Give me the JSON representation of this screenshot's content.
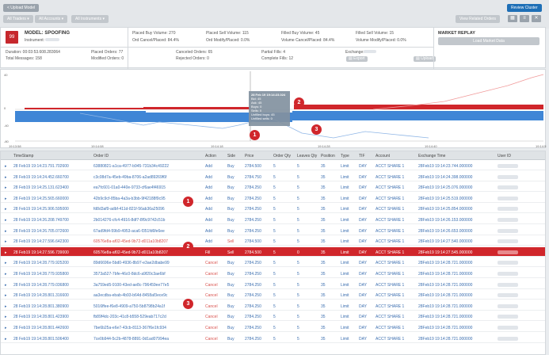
{
  "topbar": {
    "back_label": "< Upload Model",
    "filter_traders": "All Traders ▾",
    "filter_accounts": "All Accounts ▾",
    "filter_instruments": "All Instruments ▾",
    "review_cluster": "Review Cluster",
    "view_button": "View Related Orders"
  },
  "model": {
    "badge": "99",
    "title": "MODEL: SPOOFING",
    "instrument_label": "Instrument:",
    "placed_buy_volume": "Placed Buy Volume: 270",
    "placed_sell_volume": "Placed Sell Volume: 115",
    "filled_buy_volume": "Filled Buy Volume: 45",
    "filled_sell_volume": "Filled Sell Volume: 15",
    "ord_cancel_placed": "Ord Cancel/Placed: 84.4%",
    "ord_modify_placed": "Ord Modify/Placed: 0.0%",
    "vol_cancel_placed": "Volume Cancel/Placed: 84.4%",
    "vol_modify_placed": "Volume Modify/Placed: 0.0%",
    "duration": "Duration: 00:03:53.608.283064",
    "total_messages": "Total Messages: 158",
    "placed_orders": "Placed Orders: 77",
    "modified_orders": "Modified Orders: 0",
    "canceled_orders": "Canceled Orders: 65",
    "rejected_orders": "Rejected Orders: 0",
    "partial_fills": "Partial Fills: 4",
    "complete_fills": "Complete Fills: 12",
    "exchange_label": "Exchange:",
    "market_replay": "MARKET REPLAY",
    "replay_button": "Load Market Data"
  },
  "chart": {
    "y_ticks": [
      "40",
      "0",
      "-40",
      "-80"
    ],
    "x_ticks": [
      "19:13:58",
      "19:14:08",
      "19:14:18",
      "19:14:28",
      "19:14:40",
      "19:14:51"
    ],
    "tooltip": {
      "time": "28 Feb 19 19:14:23.024",
      "bid": "Bid: 45",
      "ask": "Ask: 45",
      "buys": "Buys: 0",
      "sells": "Sells: 0",
      "unfilled_buys": "Unfilled buys: 45",
      "unfilled_sells": "Unfilled sells: 0"
    }
  },
  "table": {
    "columns": [
      "TimeStamp",
      "Order ID",
      "Action",
      "Side",
      "Price",
      "Order Qty",
      "Leaves Qty",
      "Position",
      "Type",
      "TIF",
      "Account",
      "Exchange Time",
      "User ID"
    ],
    "rows": [
      [
        "28 Feb19 19:14:23.791.702600",
        "63880821-a1ca-4977-b945-731b34c49222",
        "Add",
        "Buy",
        "2784.500",
        "5",
        "5",
        "35",
        "Limit",
        "DAY",
        "ACCT SHARE 1",
        "28Feb19 19:14:23.744.000000"
      ],
      [
        "28 Feb19 19:14:24.452.660700",
        "c3c08d7a-45eb-49ba-8706-a2ad89269f6f",
        "Add",
        "Buy",
        "2784.750",
        "5",
        "5",
        "35",
        "Limit",
        "DAY",
        "ACCT SHARE 1",
        "28Feb19 19:14:24.398.000000"
      ],
      [
        "28 Feb19 19:14:25.131.623400",
        "ea7fc601-01a0-440e-9733-cf6ae4f46915",
        "Add",
        "Buy",
        "2784.250",
        "5",
        "5",
        "35",
        "Limit",
        "DAY",
        "ACCT SHARE 1",
        "28Feb19 19:14:25.076.000000"
      ],
      [
        "28 Feb19 19:14:25.565.660000",
        "42b9c9cf-85ba-4a3a-b3bb-9f42188f9c95",
        "Add",
        "Buy",
        "2784.250",
        "5",
        "5",
        "35",
        "Limit",
        "DAY",
        "ACCT SHARE 1",
        "28Feb19 19:14:25.519.000000"
      ],
      [
        "28 Feb19 19:14:25.906.595000",
        "fd8d3af9-adbf-411d-821f-56ab36a25096",
        "Add",
        "Buy",
        "2784.250",
        "5",
        "5",
        "35",
        "Limit",
        "DAY",
        "ACCT SHARE 1",
        "28Feb19 19:14:25.854.000000"
      ],
      [
        "28 Feb19 19:14:26.208.749700",
        "2b014276-cfc4-4916-8df7-8f9c9742c51b",
        "Add",
        "Buy",
        "2784.250",
        "5",
        "5",
        "35",
        "Limit",
        "DAY",
        "ACCT SHARE 1",
        "28Feb19 19:14:26.153.000000"
      ],
      [
        "28 Feb19 19:14:26.705.072600",
        "67ad9fd4-59b9-4953-aca6-f351fd6fe6ee",
        "Add",
        "Buy",
        "2784.250",
        "5",
        "5",
        "35",
        "Limit",
        "DAY",
        "ACCT SHARE 1",
        "28Feb19 19:14:26.653.000000"
      ],
      [
        "28 Feb19 19:14:27.596.642300",
        "60576e8a-af02-45ed-9b72-d011a10b8207",
        "Add",
        "Sell",
        "2784.500",
        "5",
        "5",
        "35",
        "Limit",
        "DAY",
        "ACCT SHARE 1",
        "28Feb19 19:14:27.540.000000"
      ],
      [
        "28 Feb19 19:14:27.596.739000",
        "60576e8a-af02-45ed-9b72-d011a10b8207",
        "Fill",
        "Sell",
        "2784.500",
        "5",
        "0",
        "35",
        "Limit",
        "DAY",
        "ACCT SHARE 1",
        "28Feb19 19:14:27.545.000000"
      ],
      [
        "28 Feb19 19:14:28.779.925200",
        "89d6696e-5bd0-4936-8b97-e3ae2dbabe99",
        "Cancel",
        "Buy",
        "2784.250",
        "5",
        "5",
        "35",
        "Limit",
        "DAY",
        "ACCT SHARE 1",
        "28Feb19 19:14:28.721.000000"
      ],
      [
        "28 Feb19 19:14:28.779.935800",
        "3573a527-7bfe-46c0-8dc6-a9f20c3ae6bf",
        "Cancel",
        "Buy",
        "2784.250",
        "5",
        "5",
        "35",
        "Limit",
        "DAY",
        "ACCT SHARE 1",
        "28Feb19 19:14:28.721.000000"
      ],
      [
        "28 Feb19 19:14:28.779.036800",
        "3a759ed5-9100-43ed-ae8c-796459ee77e5",
        "Cancel",
        "Buy",
        "2784.250",
        "5",
        "5",
        "35",
        "Limit",
        "DAY",
        "ACCT SHARE 1",
        "28Feb19 19:14:28.721.000000"
      ],
      [
        "28 Feb19 19:14:28.801.316600",
        "aa3ecdba-ebab-4b93-b64d-8458af3ece9c",
        "Cancel",
        "Buy",
        "2784.250",
        "5",
        "5",
        "35",
        "Limit",
        "DAY",
        "ACCT SHARE 1",
        "28Feb19 19:14:28.721.000000"
      ],
      [
        "28 Feb19 19:14:28.801.380900",
        "5016ffee-f6e8-4909-a750-5b8798b24a1f",
        "Cancel",
        "Buy",
        "2784.250",
        "5",
        "5",
        "35",
        "Limit",
        "DAY",
        "ACCT SHARE 1",
        "28Feb19 19:14:28.721.000000"
      ],
      [
        "28 Feb19 19:14:28.801.423900",
        "fb89f4dc-203c-41c8-b558-529eab717c2d",
        "Cancel",
        "Buy",
        "2784.250",
        "5",
        "5",
        "35",
        "Limit",
        "DAY",
        "ACCT SHARE 1",
        "28Feb19 19:14:28.721.000000"
      ],
      [
        "28 Feb19 19:14:28.801.442600",
        "7be6b25a-e6e7-43cb-8113-367f6e1fc934",
        "Cancel",
        "Buy",
        "2784.250",
        "5",
        "5",
        "35",
        "Limit",
        "DAY",
        "ACCT SHARE 1",
        "28Feb19 19:14:28.721.000000"
      ],
      [
        "28 Feb19 19:14:28.801.506400",
        "7ce0b944-5c2b-4878-8891-0d1ad07994ea",
        "Cancel",
        "Buy",
        "2784.250",
        "5",
        "5",
        "35",
        "Limit",
        "DAY",
        "ACCT SHARE 1",
        "28Feb19 19:14:28.721.000000"
      ]
    ]
  },
  "markers": {
    "m1": "1",
    "m2": "2",
    "m3": "3"
  },
  "colors": {
    "buy_blue": "#3f86d6",
    "sell_red": "#d0262b",
    "accent": "#1e6fb6"
  }
}
